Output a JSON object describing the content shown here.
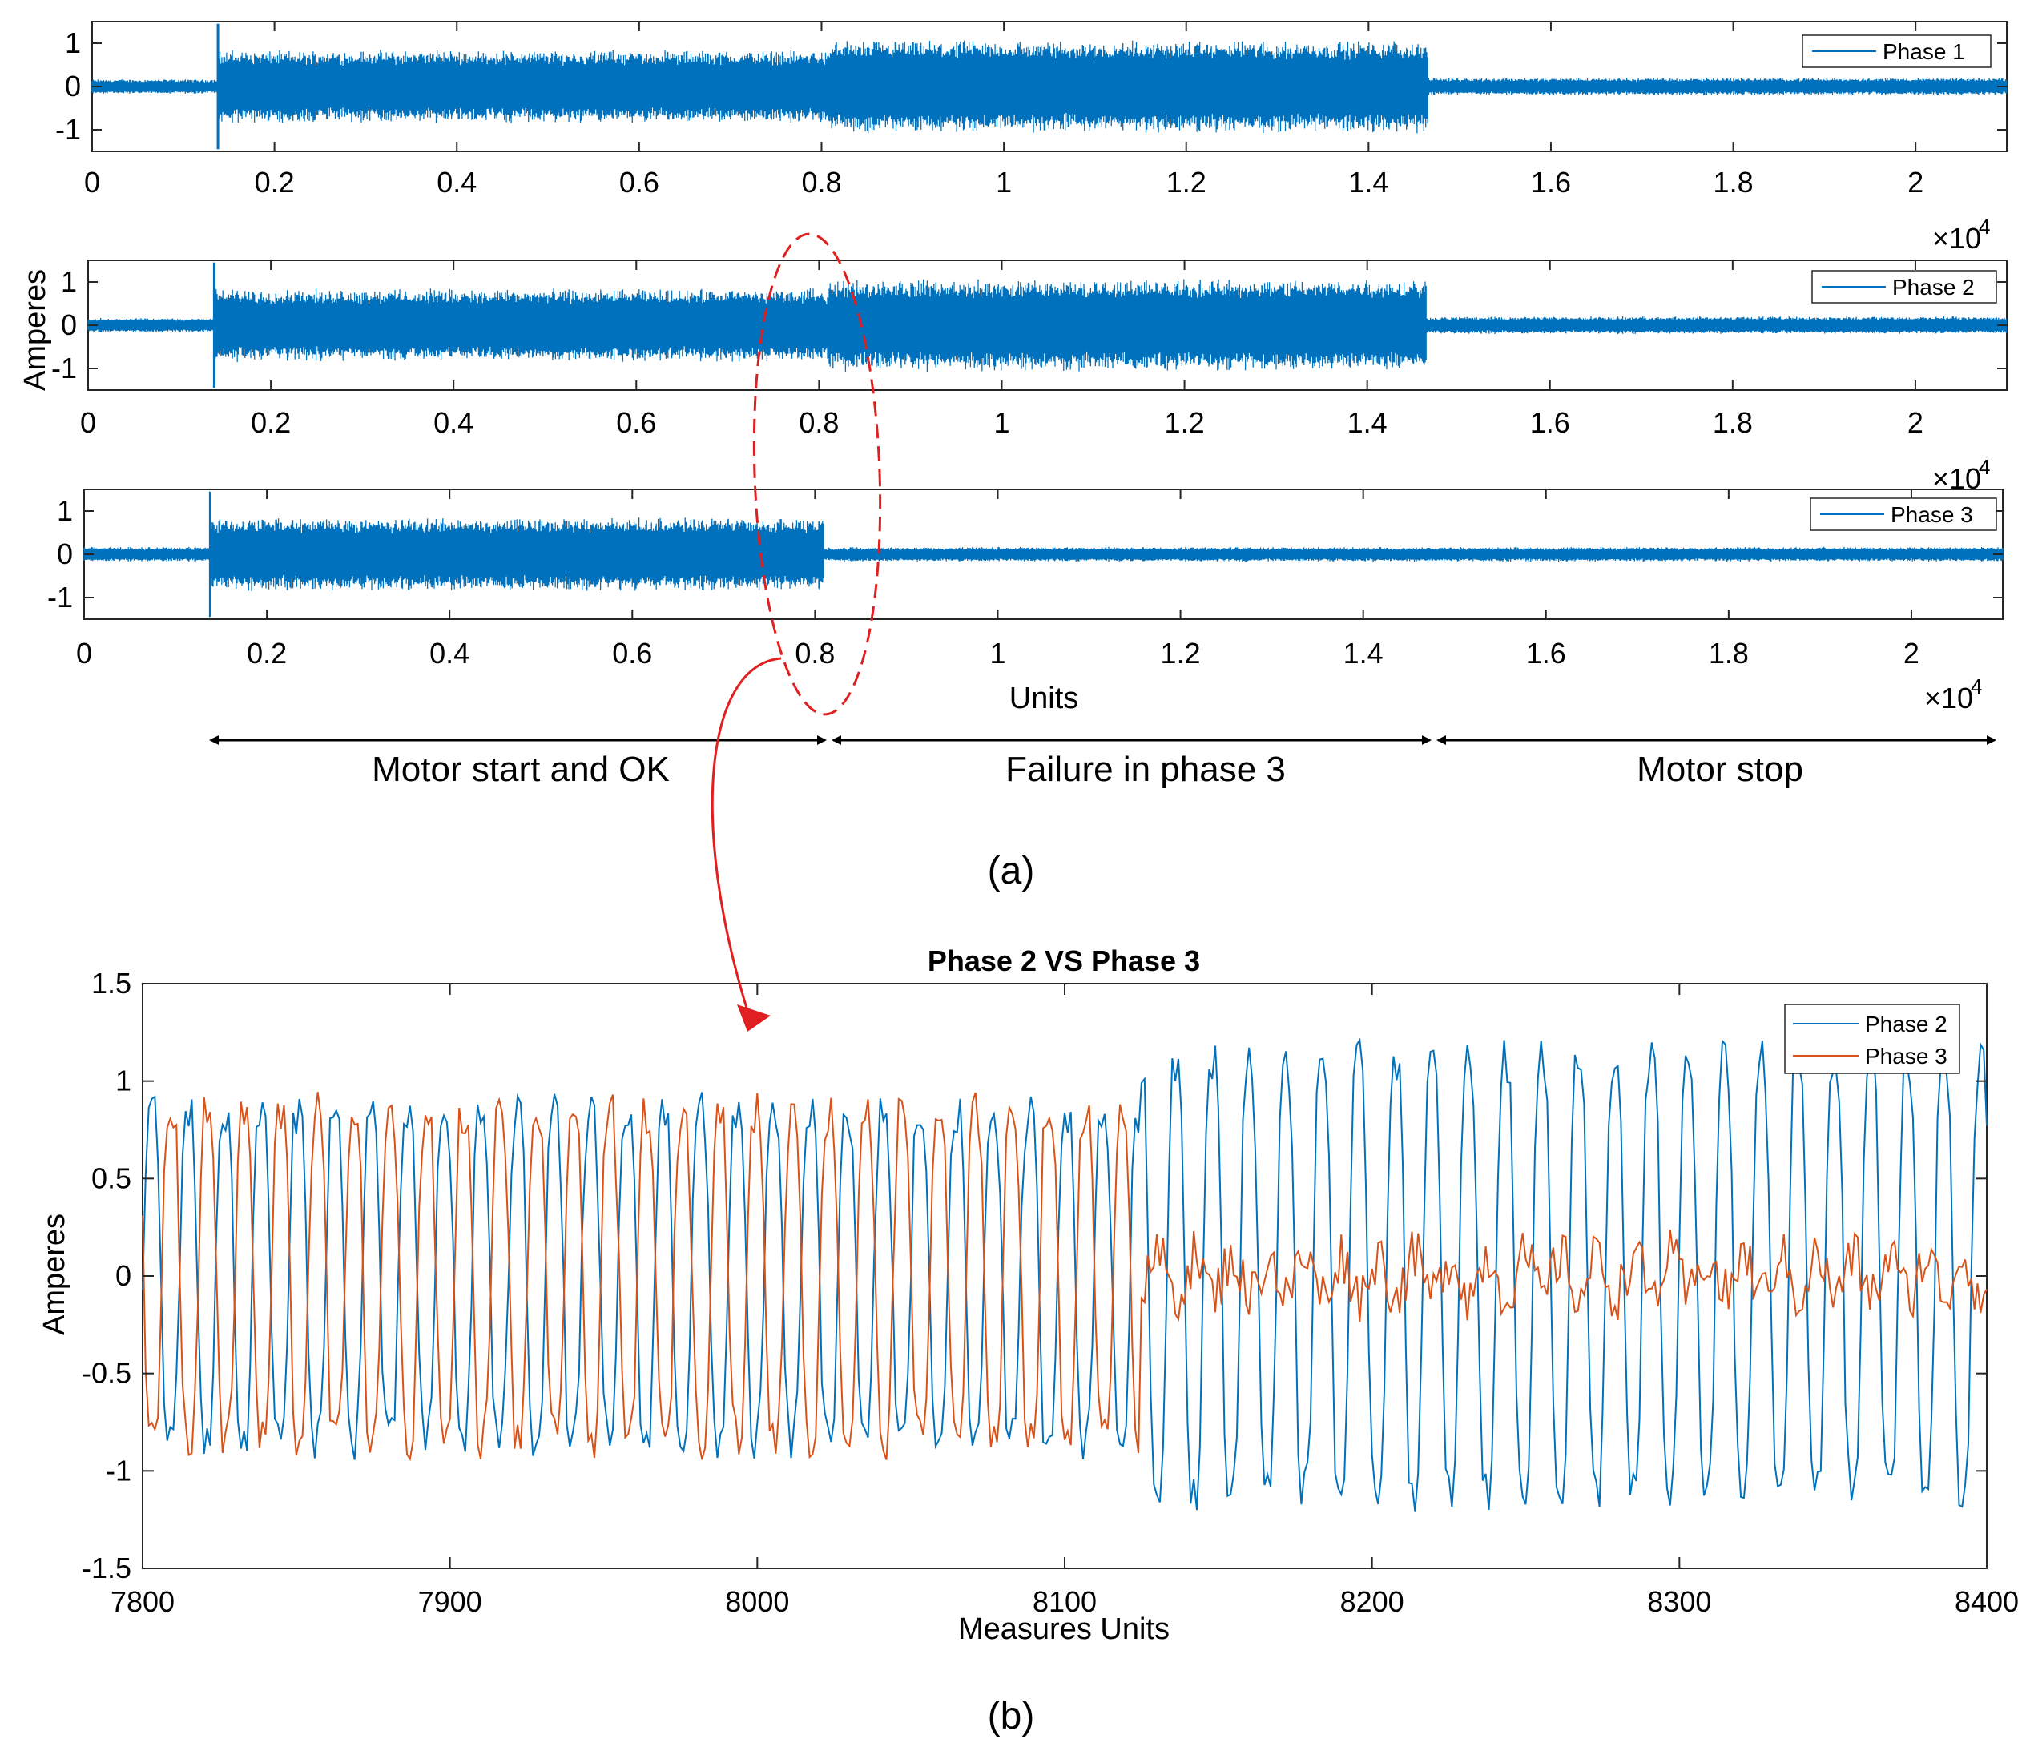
{
  "colors": {
    "phase1": "#0072BD",
    "phase2": "#0072BD",
    "phase2_b": "#0072BD",
    "phase3_b": "#D95319",
    "highlight": "#E02020",
    "axis": "#262626"
  },
  "panel_a": {
    "label": "(a)",
    "xlabel": "Units",
    "ylabel": "Amperes",
    "exponent_base": "×10",
    "exponent_power": "4",
    "xticks": [
      "0",
      "0.2",
      "0.4",
      "0.6",
      "0.8",
      "1",
      "1.2",
      "1.4",
      "1.6",
      "1.8",
      "2"
    ],
    "yticks": [
      "1",
      "0",
      "-1"
    ],
    "regions": [
      "Motor start and OK",
      "Failure in phase 3",
      "Motor stop"
    ]
  },
  "panel_b": {
    "label": "(b)",
    "title": "Phase 2 VS Phase 3",
    "xlabel": "Measures Units",
    "ylabel": "Amperes",
    "xticks": [
      "7800",
      "7900",
      "8000",
      "8100",
      "8200",
      "8300",
      "8400"
    ],
    "yticks": [
      "1.5",
      "1",
      "0.5",
      "0",
      "-0.5",
      "-1",
      "-1.5"
    ]
  },
  "chart_data": [
    {
      "type": "line",
      "title": "",
      "xlabel": "",
      "ylabel": "",
      "xlim": [
        0,
        21000
      ],
      "ylim": [
        -1.5,
        1.5
      ],
      "series": [
        {
          "name": "Phase 1",
          "segments": [
            {
              "x": [
                0,
                1380
              ],
              "amplitude": 0.15
            },
            {
              "x": [
                1380,
                8100
              ],
              "amplitude": 0.75
            },
            {
              "x": [
                8100,
                14650
              ],
              "amplitude": 0.95
            },
            {
              "x": [
                14650,
                21000
              ],
              "amplitude": 0.18
            }
          ]
        }
      ]
    },
    {
      "type": "line",
      "title": "",
      "xlabel": "",
      "ylabel": "Amperes",
      "xlim": [
        0,
        21000
      ],
      "ylim": [
        -1.5,
        1.5
      ],
      "series": [
        {
          "name": "Phase 2",
          "segments": [
            {
              "x": [
                0,
                1380
              ],
              "amplitude": 0.15
            },
            {
              "x": [
                1380,
                8100
              ],
              "amplitude": 0.75
            },
            {
              "x": [
                8100,
                14650
              ],
              "amplitude": 0.95
            },
            {
              "x": [
                14650,
                21000
              ],
              "amplitude": 0.18
            }
          ]
        }
      ]
    },
    {
      "type": "line",
      "title": "",
      "xlabel": "Units",
      "ylabel": "",
      "xlim": [
        0,
        21000
      ],
      "ylim": [
        -1.5,
        1.5
      ],
      "series": [
        {
          "name": "Phase 3",
          "segments": [
            {
              "x": [
                0,
                1380
              ],
              "amplitude": 0.15
            },
            {
              "x": [
                1380,
                8100
              ],
              "amplitude": 0.75
            },
            {
              "x": [
                8100,
                21000
              ],
              "amplitude": 0.15
            }
          ]
        }
      ]
    },
    {
      "type": "line",
      "title": "Phase 2 VS Phase 3",
      "xlabel": "Measures Units",
      "ylabel": "Amperes",
      "xlim": [
        7800,
        8400
      ],
      "ylim": [
        -1.5,
        1.5
      ],
      "series": [
        {
          "name": "Phase 2",
          "period": 11.9,
          "segments": [
            {
              "x": [
                7800,
                8125
              ],
              "amplitude": 0.95
            },
            {
              "x": [
                8125,
                8400
              ],
              "amplitude": 1.25
            }
          ]
        },
        {
          "name": "Phase 3",
          "period": 11.9,
          "segments": [
            {
              "x": [
                7800,
                8125
              ],
              "amplitude": 0.95
            },
            {
              "x": [
                8125,
                8400
              ],
              "amplitude": 0.2
            }
          ]
        }
      ]
    }
  ]
}
